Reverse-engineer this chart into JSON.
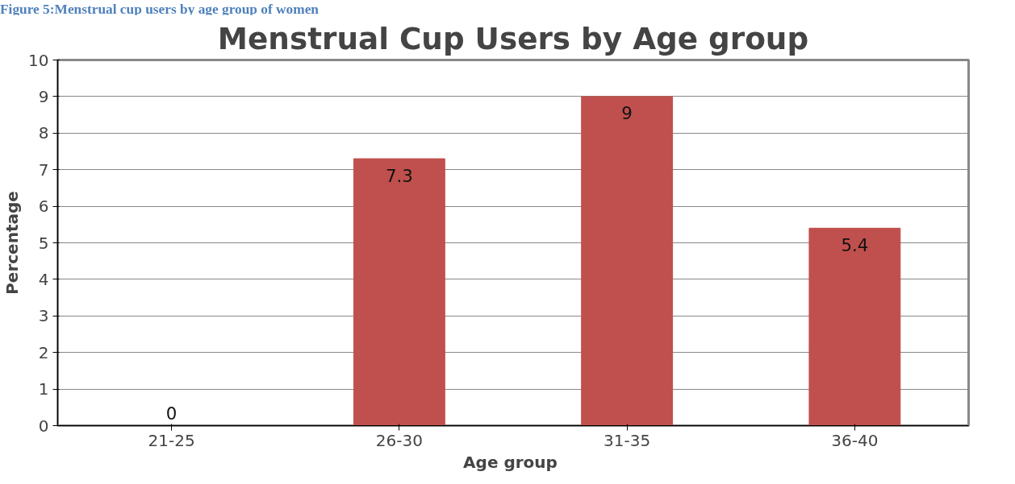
{
  "chart_data": {
    "type": "bar",
    "title": "Menstrual Cup Users by Age group",
    "xlabel": "Age  group",
    "ylabel": "Percentage",
    "annotations": [
      "Figure 5:Menstrual cup users by age group of women"
    ],
    "categories": [
      "21-25",
      "26-30",
      "31-35",
      "36-40"
    ],
    "values": [
      0,
      7.3,
      9,
      5.4
    ],
    "color": "#c0504d",
    "ylim": [
      0,
      10
    ],
    "yticks": [
      0,
      1,
      2,
      3,
      4,
      5,
      6,
      7,
      8,
      9,
      10
    ],
    "grid": "y",
    "data_labels": true
  }
}
